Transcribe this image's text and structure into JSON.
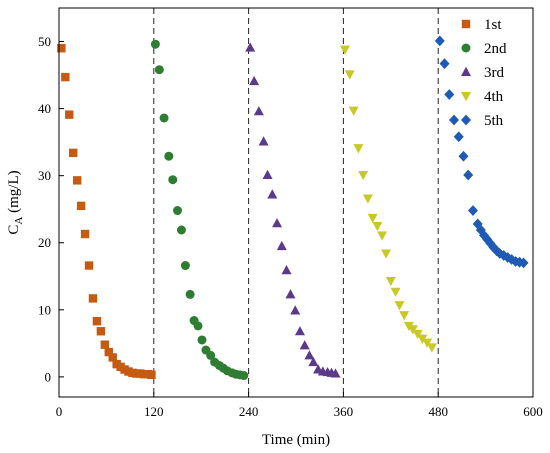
{
  "chart_data": {
    "type": "scatter",
    "xlabel": "Time (min)",
    "ylabel_main": "C",
    "ylabel_sub": "A",
    "ylabel_unit": " (mg/L)",
    "xlim": [
      0,
      600
    ],
    "ylim": [
      -3,
      55
    ],
    "xticks": [
      0,
      120,
      240,
      360,
      480,
      600
    ],
    "yticks": [
      0,
      10,
      20,
      30,
      40,
      50
    ],
    "cycle_dividers": [
      120,
      240,
      360,
      480
    ],
    "legend_position": "top-right",
    "grid": false,
    "series": [
      {
        "name": "1st",
        "marker": "square",
        "color": "#C55A11",
        "x": [
          3,
          8,
          13,
          18,
          23,
          28,
          33,
          38,
          43,
          48,
          53,
          58,
          63,
          68,
          73,
          78,
          83,
          88,
          93,
          98,
          103,
          108,
          113,
          117
        ],
        "y": [
          49,
          44.7,
          39.1,
          33.4,
          29.3,
          25.5,
          21.3,
          16.6,
          11.7,
          8.3,
          6.8,
          4.8,
          3.7,
          2.9,
          1.9,
          1.5,
          1.1,
          0.8,
          0.6,
          0.5,
          0.5,
          0.4,
          0.4,
          0.3
        ]
      },
      {
        "name": "2nd",
        "marker": "circle",
        "color": "#2E7D32",
        "x": [
          122,
          127,
          133,
          139,
          144,
          150,
          155,
          160,
          166,
          171,
          176,
          181,
          186,
          192,
          197,
          203,
          208,
          213,
          219,
          224,
          229,
          234
        ],
        "y": [
          49.6,
          45.8,
          38.6,
          32.9,
          29.4,
          24.8,
          21.9,
          16.6,
          12.3,
          8.4,
          7.6,
          5.5,
          4,
          3.2,
          2.2,
          1.7,
          1.3,
          0.9,
          0.6,
          0.4,
          0.3,
          0.2
        ]
      },
      {
        "name": "3rd",
        "marker": "triangle-up",
        "color": "#5C3A8A",
        "x": [
          242,
          247,
          253,
          259,
          264,
          270,
          276,
          282,
          288,
          293,
          299,
          305,
          311,
          317,
          322,
          328,
          334,
          340,
          345,
          350
        ],
        "y": [
          49.1,
          44.1,
          39.6,
          35.1,
          30.1,
          27.2,
          22.9,
          19.5,
          15.9,
          12.3,
          9.9,
          6.8,
          4.7,
          3.2,
          2.2,
          1.1,
          0.8,
          0.7,
          0.6,
          0.5
        ]
      },
      {
        "name": "4th",
        "marker": "triangle-down",
        "color": "#C8C828",
        "x": [
          362,
          368,
          373,
          379,
          385,
          391,
          397,
          403,
          409,
          414,
          420,
          426,
          431,
          437,
          443,
          448,
          454,
          460,
          466,
          472
        ],
        "y": [
          48.8,
          45.1,
          39.7,
          34.1,
          30.1,
          26.6,
          23.7,
          22.5,
          21.1,
          18.4,
          14.3,
          12.7,
          10.7,
          9.2,
          7.6,
          7.1,
          6.4,
          5.7,
          5.1,
          4.4
        ]
      },
      {
        "name": "5th",
        "marker": "diamond",
        "color": "#1F5BB5",
        "x": [
          482,
          488,
          494,
          500,
          506,
          512,
          518,
          524,
          530,
          534,
          538,
          542,
          546,
          550,
          554,
          558,
          563,
          568,
          573,
          578,
          583,
          588
        ],
        "y": [
          50.1,
          46.7,
          42.1,
          38.3,
          35.8,
          32.9,
          30.1,
          24.8,
          22.8,
          21.9,
          21.1,
          20.5,
          19.9,
          19.3,
          18.8,
          18.4,
          18.1,
          17.8,
          17.5,
          17.2,
          17.1,
          17
        ]
      }
    ]
  }
}
